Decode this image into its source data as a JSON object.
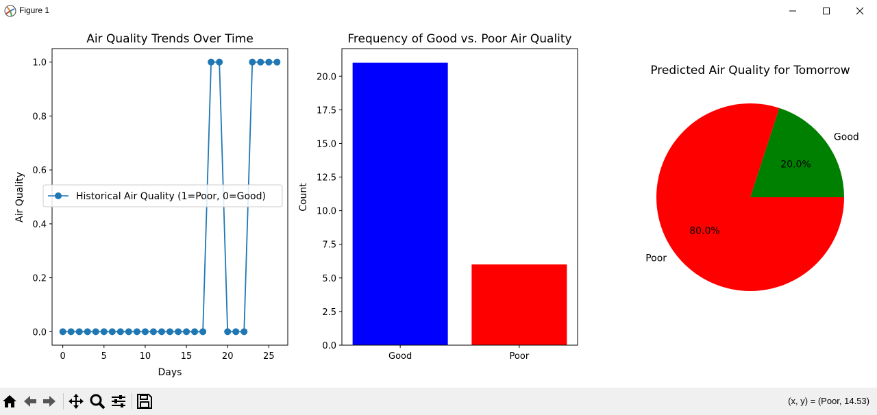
{
  "window": {
    "title": "Figure 1"
  },
  "status": {
    "coords": "(x, y) = (Poor, 14.53)"
  },
  "toolbar": {
    "icons": [
      "home-icon",
      "back-arrow-icon",
      "forward-arrow-icon",
      "pan-icon",
      "zoom-icon",
      "configure-subplots-icon",
      "save-icon"
    ]
  },
  "chart_data": [
    {
      "type": "line",
      "title": "Air Quality Trends Over Time",
      "xlabel": "Days",
      "ylabel": "Air Quality",
      "x": [
        0,
        1,
        2,
        3,
        4,
        5,
        6,
        7,
        8,
        9,
        10,
        11,
        12,
        13,
        14,
        15,
        16,
        17,
        18,
        19,
        20,
        21,
        22,
        23,
        24,
        25,
        26
      ],
      "series": [
        {
          "name": "Historical Air Quality (1=Poor, 0=Good)",
          "color": "#1f77b4",
          "values": [
            0,
            0,
            0,
            0,
            0,
            0,
            0,
            0,
            0,
            0,
            0,
            0,
            0,
            0,
            0,
            0,
            0,
            0,
            1,
            1,
            0,
            0,
            0,
            1,
            1,
            1,
            1
          ]
        }
      ],
      "xlim": [
        -1.3,
        27.3
      ],
      "ylim": [
        -0.05,
        1.05
      ],
      "xticks": [
        0,
        5,
        10,
        15,
        20,
        25
      ],
      "xtick_labels": [
        "0",
        "5",
        "10",
        "15",
        "20",
        "25"
      ],
      "yticks": [
        0.0,
        0.2,
        0.4,
        0.6,
        0.8,
        1.0
      ],
      "ytick_labels": [
        "0.0",
        "0.2",
        "0.4",
        "0.6",
        "0.8",
        "1.0"
      ],
      "legend": "center-left"
    },
    {
      "type": "bar",
      "title": "Frequency of Good vs. Poor Air Quality",
      "xlabel": "",
      "ylabel": "Count",
      "categories": [
        "Good",
        "Poor"
      ],
      "values": [
        21,
        6
      ],
      "colors": [
        "#0000ff",
        "#ff0000"
      ],
      "ylim": [
        0,
        22.05
      ],
      "yticks": [
        0.0,
        2.5,
        5.0,
        7.5,
        10.0,
        12.5,
        15.0,
        17.5,
        20.0
      ],
      "ytick_labels": [
        "0.0",
        "2.5",
        "5.0",
        "7.5",
        "10.0",
        "12.5",
        "15.0",
        "17.5",
        "20.0"
      ]
    },
    {
      "type": "pie",
      "title": "Predicted Air Quality for Tomorrow",
      "labels": [
        "Good",
        "Poor"
      ],
      "values": [
        20.0,
        80.0
      ],
      "pct_labels": [
        "20.0%",
        "80.0%"
      ],
      "colors": [
        "#008000",
        "#ff0000"
      ]
    }
  ]
}
